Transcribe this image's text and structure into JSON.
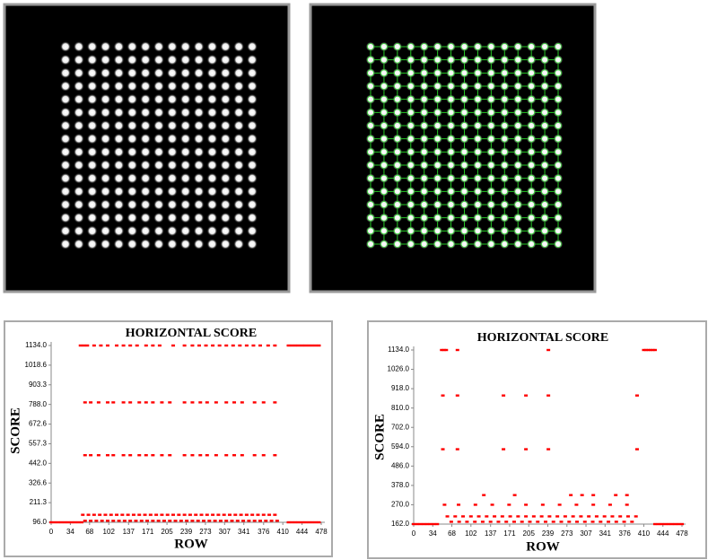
{
  "chart_data": [
    {
      "type": "scatter",
      "title": "HORIZONTAL SCORE",
      "xlabel": "ROW",
      "ylabel": "SCORE",
      "xlim": [
        0,
        478
      ],
      "xticks": [
        0,
        34,
        68,
        102,
        137,
        171,
        205,
        239,
        273,
        307,
        341,
        376,
        410,
        444,
        478
      ],
      "ylim": [
        96,
        1134
      ],
      "yticks": [
        {
          "value": 96,
          "label": "96.0"
        },
        211.3,
        326.6,
        {
          "value": 442,
          "label": "442.0"
        },
        557.3,
        672.6,
        {
          "value": 788,
          "label": "788.0"
        },
        903.3,
        1018.6,
        {
          "value": 1134,
          "label": "1134.0"
        }
      ],
      "series": [
        {
          "color": "#ff0000",
          "x": [
            0,
            6,
            12,
            18,
            24,
            30,
            36,
            42,
            48,
            54,
            420,
            426,
            432,
            438,
            444,
            450,
            456,
            462,
            468,
            474
          ],
          "y": [
            96,
            96,
            96,
            96,
            96,
            96,
            96,
            96,
            96,
            96,
            96,
            96,
            96,
            96,
            96,
            96,
            96,
            96,
            96,
            96
          ]
        },
        {
          "color": "#ff0000",
          "x": [
            52,
            58,
            64,
            76,
            88,
            100,
            116,
            128,
            140,
            152,
            168,
            180,
            192,
            216,
            236,
            250,
            262,
            274,
            286,
            298,
            310,
            322,
            334,
            346,
            358,
            370,
            384,
            396,
            420,
            426,
            432,
            438,
            444,
            450,
            456,
            462,
            468,
            474
          ],
          "y": [
            1134,
            1134,
            1134,
            1134,
            1134,
            1134,
            1134,
            1134,
            1134,
            1134,
            1134,
            1134,
            1134,
            1134,
            1134,
            1134,
            1134,
            1134,
            1134,
            1134,
            1134,
            1134,
            1134,
            1134,
            1134,
            1134,
            1134,
            1134,
            1134,
            1134,
            1134,
            1134,
            1134,
            1134,
            1134,
            1134,
            1134,
            1134
          ]
        },
        {
          "color": "#ff0000",
          "x": [
            60,
            70,
            84,
            100,
            110,
            128,
            140,
            156,
            168,
            180,
            196,
            210,
            236,
            250,
            264,
            276,
            292,
            310,
            324,
            338,
            360,
            376,
            396
          ],
          "y": [
            800,
            800,
            800,
            800,
            800,
            800,
            800,
            800,
            800,
            800,
            800,
            800,
            800,
            800,
            800,
            800,
            800,
            800,
            800,
            800,
            800,
            800,
            800
          ]
        },
        {
          "color": "#ff0000",
          "x": [
            60,
            70,
            84,
            100,
            110,
            128,
            140,
            156,
            168,
            180,
            196,
            210,
            236,
            250,
            264,
            276,
            292,
            310,
            324,
            338,
            360,
            376,
            396
          ],
          "y": [
            490,
            490,
            490,
            490,
            490,
            490,
            490,
            490,
            490,
            490,
            490,
            490,
            490,
            490,
            490,
            490,
            490,
            490,
            490,
            490,
            490,
            490,
            490
          ]
        },
        {
          "color": "#ff0000",
          "x": [
            56,
            66,
            76,
            86,
            96,
            106,
            116,
            126,
            136,
            146,
            156,
            166,
            176,
            186,
            196,
            206,
            216,
            226,
            236,
            246,
            256,
            266,
            276,
            286,
            296,
            306,
            316,
            326,
            336,
            346,
            356,
            366,
            376,
            386,
            396
          ],
          "y": [
            140,
            140,
            140,
            140,
            140,
            140,
            140,
            140,
            140,
            140,
            140,
            140,
            140,
            140,
            140,
            140,
            140,
            140,
            140,
            140,
            140,
            140,
            140,
            140,
            140,
            140,
            140,
            140,
            140,
            140,
            140,
            140,
            140,
            140,
            140
          ]
        },
        {
          "color": "#ff0000",
          "x": [
            60,
            70,
            80,
            90,
            100,
            110,
            120,
            130,
            140,
            150,
            160,
            170,
            180,
            190,
            200,
            210,
            220,
            230,
            240,
            250,
            260,
            270,
            280,
            290,
            300,
            310,
            320,
            330,
            340,
            350,
            360,
            370,
            380,
            390,
            400
          ],
          "y": [
            105,
            105,
            105,
            105,
            105,
            105,
            105,
            105,
            105,
            105,
            105,
            105,
            105,
            105,
            105,
            105,
            105,
            105,
            105,
            105,
            105,
            105,
            105,
            105,
            105,
            105,
            105,
            105,
            105,
            105,
            105,
            105,
            105,
            105,
            105
          ]
        }
      ]
    },
    {
      "type": "scatter",
      "title": "HORIZONTAL SCORE",
      "xlabel": "ROW",
      "ylabel": "SCORE",
      "xlim": [
        0,
        478
      ],
      "xticks": [
        0,
        34,
        68,
        102,
        137,
        171,
        205,
        239,
        273,
        307,
        341,
        376,
        410,
        444,
        478
      ],
      "ylim": [
        162,
        1134
      ],
      "yticks": [
        {
          "value": 162,
          "label": "162.0"
        },
        {
          "value": 270,
          "label": "270.0"
        },
        {
          "value": 378,
          "label": "378.0"
        },
        {
          "value": 486,
          "label": "486.0"
        },
        {
          "value": 594,
          "label": "594.0"
        },
        {
          "value": 702,
          "label": "702.0"
        },
        {
          "value": 810,
          "label": "810.0"
        },
        {
          "value": 918,
          "label": "918.0"
        },
        {
          "value": 1026,
          "label": "1026.0"
        },
        {
          "value": 1134,
          "label": "1134.0"
        }
      ],
      "series": [
        {
          "color": "#ff0000",
          "x": [
            0,
            6,
            12,
            18,
            24,
            30,
            36,
            42,
            430,
            436,
            442,
            448,
            454,
            460,
            466,
            472,
            478
          ],
          "y": [
            162,
            162,
            162,
            162,
            162,
            162,
            162,
            162,
            162,
            162,
            162,
            162,
            162,
            162,
            162,
            162,
            162
          ]
        },
        {
          "color": "#ff0000",
          "x": [
            50,
            54,
            58,
            78,
            240,
            410,
            414,
            418,
            422,
            426,
            430
          ],
          "y": [
            1134,
            1134,
            1134,
            1134,
            1134,
            1134,
            1134,
            1134,
            1134,
            1134,
            1134
          ]
        },
        {
          "color": "#ff0000",
          "x": [
            52,
            78,
            160,
            200,
            240,
            398
          ],
          "y": [
            880,
            880,
            880,
            880,
            880,
            880
          ]
        },
        {
          "color": "#ff0000",
          "x": [
            52,
            78,
            160,
            200,
            240,
            398
          ],
          "y": [
            580,
            580,
            580,
            580,
            580,
            580
          ]
        },
        {
          "color": "#ff0000",
          "x": [
            125,
            180,
            280,
            300,
            320,
            360,
            380
          ],
          "y": [
            324,
            324,
            324,
            324,
            324,
            324,
            324
          ]
        },
        {
          "color": "#ff0000",
          "x": [
            55,
            80,
            110,
            140,
            170,
            200,
            230,
            260,
            290,
            320,
            350,
            380
          ],
          "y": [
            270,
            270,
            270,
            270,
            270,
            270,
            270,
            270,
            270,
            270,
            270,
            270
          ]
        },
        {
          "color": "#ff0000",
          "x": [
            60,
            74,
            88,
            102,
            116,
            130,
            144,
            158,
            172,
            186,
            200,
            214,
            228,
            242,
            256,
            270,
            284,
            298,
            312,
            326,
            340,
            354,
            368,
            382,
            396
          ],
          "y": [
            205,
            205,
            205,
            205,
            205,
            205,
            205,
            205,
            205,
            205,
            205,
            205,
            205,
            205,
            205,
            205,
            205,
            205,
            205,
            205,
            205,
            205,
            205,
            205,
            205
          ]
        },
        {
          "color": "#ff0000",
          "x": [
            67,
            81,
            95,
            109,
            123,
            137,
            151,
            165,
            179,
            193,
            207,
            221,
            235,
            249,
            263,
            277,
            291,
            305,
            319,
            333,
            347,
            361,
            375,
            389
          ],
          "y": [
            175,
            175,
            175,
            175,
            175,
            175,
            175,
            175,
            175,
            175,
            175,
            175,
            175,
            175,
            175,
            175,
            175,
            175,
            175,
            175,
            175,
            175,
            175,
            175
          ]
        }
      ]
    }
  ]
}
